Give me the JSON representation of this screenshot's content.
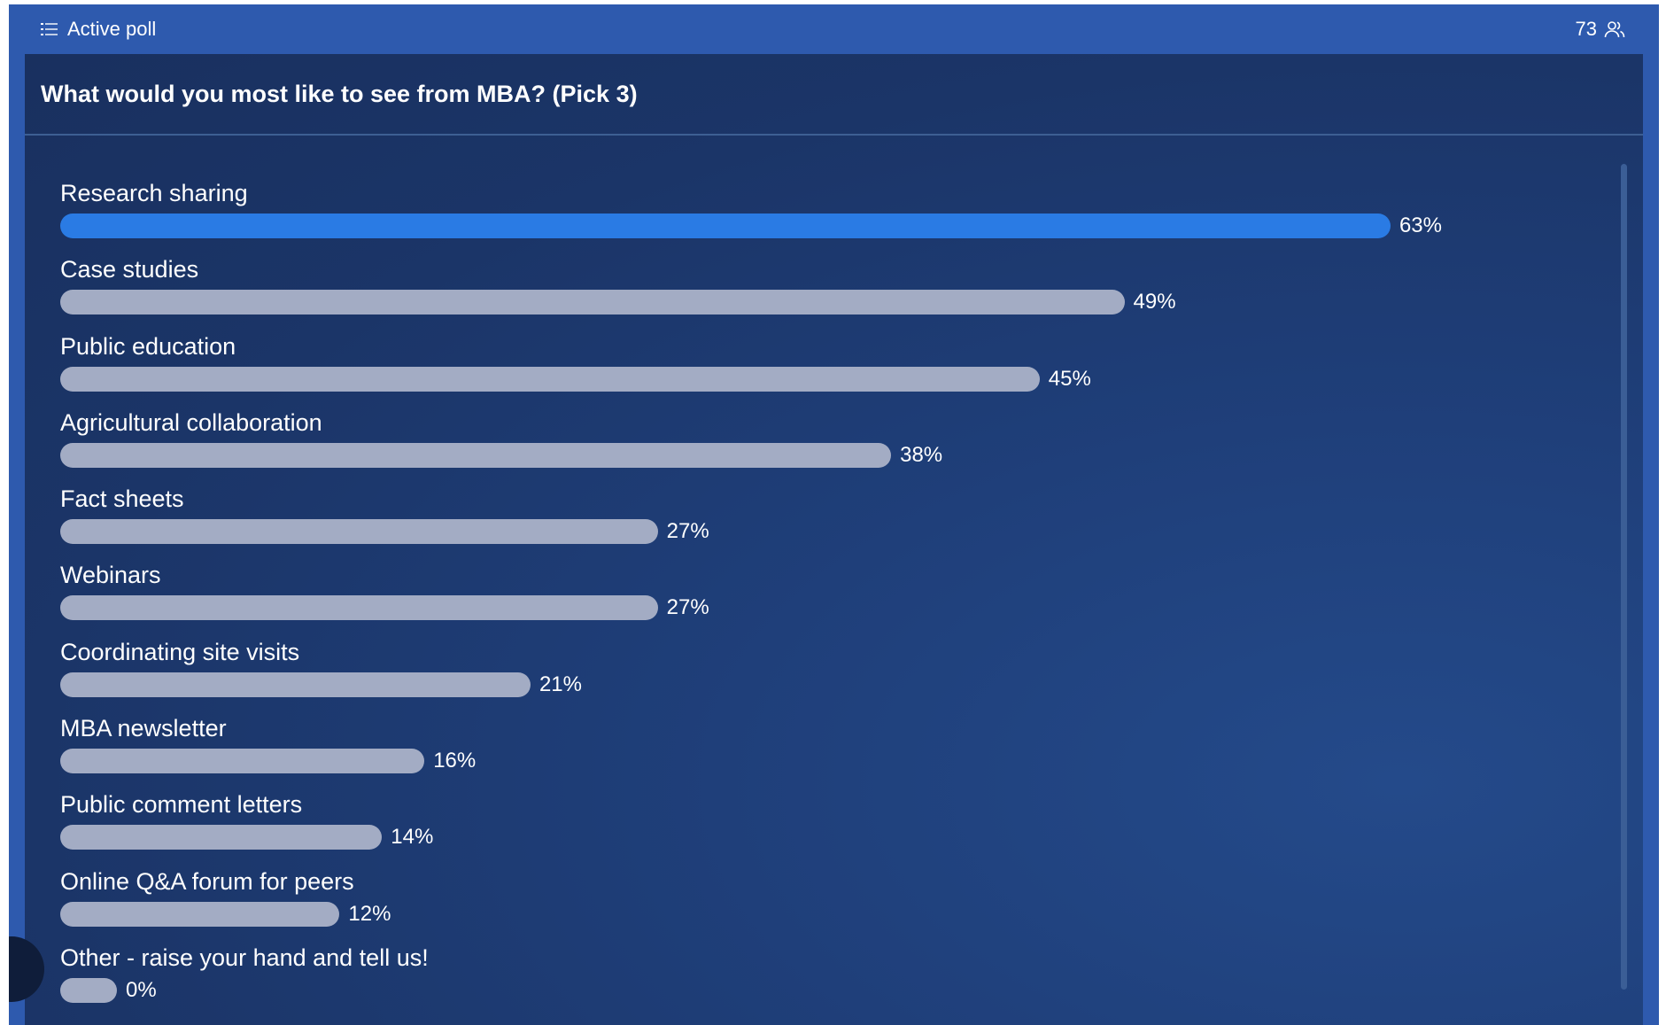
{
  "header": {
    "title": "Active poll",
    "participant_count": "73",
    "list_icon": "list-icon",
    "users_icon": "users-icon"
  },
  "poll": {
    "question": "What would you most like to see from MBA? (Pick 3)",
    "options": [
      {
        "label": "Research sharing",
        "percent": 63,
        "percent_label": "63%"
      },
      {
        "label": "Case studies",
        "percent": 49,
        "percent_label": "49%"
      },
      {
        "label": "Public education",
        "percent": 45,
        "percent_label": "45%"
      },
      {
        "label": "Agricultural collaboration",
        "percent": 38,
        "percent_label": "38%"
      },
      {
        "label": "Fact sheets",
        "percent": 27,
        "percent_label": "27%"
      },
      {
        "label": "Webinars",
        "percent": 27,
        "percent_label": "27%"
      },
      {
        "label": "Coordinating site visits",
        "percent": 21,
        "percent_label": "21%"
      },
      {
        "label": "MBA newsletter",
        "percent": 16,
        "percent_label": "16%"
      },
      {
        "label": "Public comment letters",
        "percent": 14,
        "percent_label": "14%"
      },
      {
        "label": "Online Q&A forum for peers",
        "percent": 12,
        "percent_label": "12%"
      },
      {
        "label": "Other - raise your hand and tell us!",
        "percent": 0,
        "percent_label": "0%"
      }
    ]
  },
  "colors": {
    "frame": "#2e5aae",
    "panel": "#1c3768",
    "leader_bar": "#2a7be4",
    "bar": "#a3acc4"
  }
}
